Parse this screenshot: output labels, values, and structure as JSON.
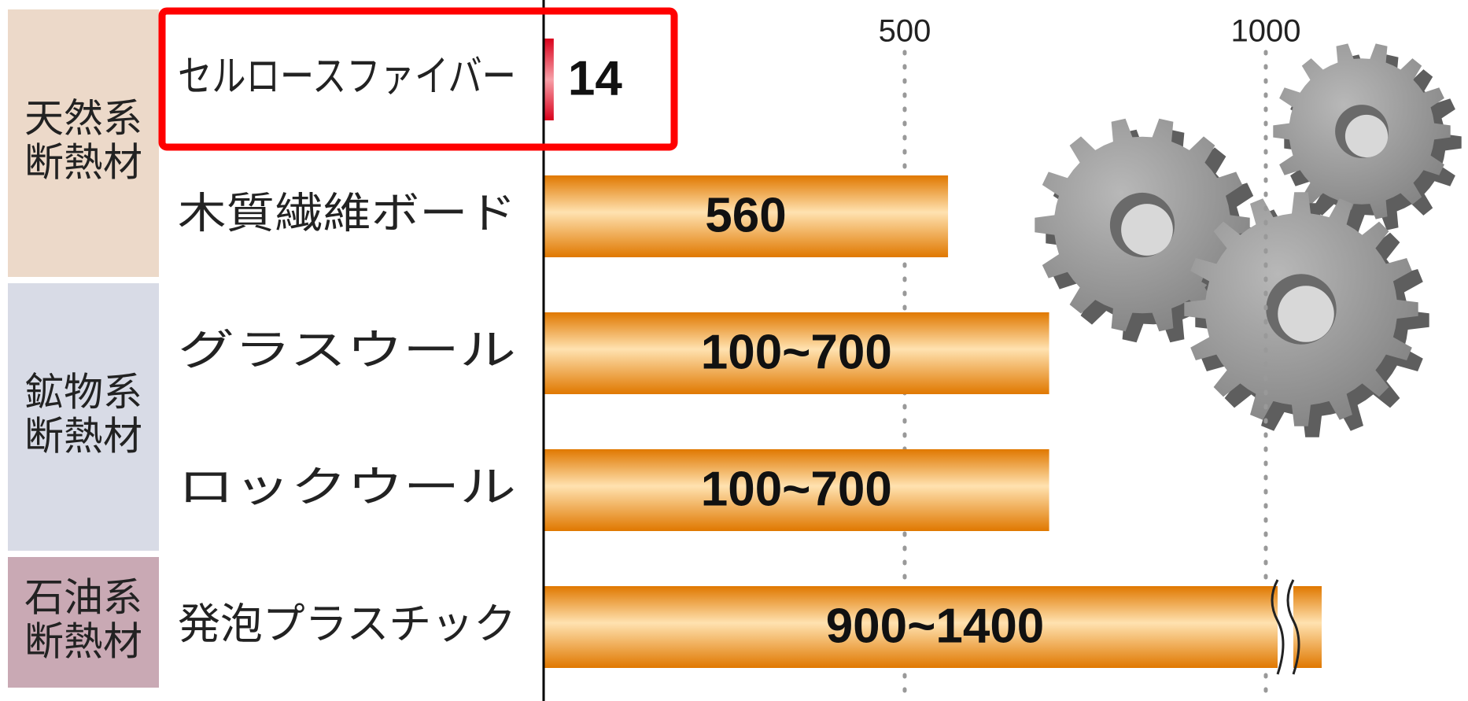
{
  "chart_data": {
    "type": "bar",
    "orientation": "horizontal",
    "groups": [
      {
        "name": [
          "天然系",
          "断熱材"
        ],
        "background": "#ecd9c9",
        "categories": [
          "セルロースファイバー",
          "木質繊維ボード"
        ],
        "values": [
          14,
          560
        ],
        "value_labels": [
          "14",
          "560"
        ],
        "colors": [
          "#d9001b",
          "#f08a00"
        ]
      },
      {
        "name": [
          "鉱物系",
          "断熱材"
        ],
        "background": "#d8dbe6",
        "categories": [
          "グラスウール",
          "ロックウール"
        ],
        "values": [
          700,
          700
        ],
        "value_labels": [
          "100~700",
          "100~700"
        ],
        "colors": [
          "#f08a00",
          "#f08a00"
        ]
      },
      {
        "name": [
          "石油系",
          "断熱材"
        ],
        "background": "#c9a9b4",
        "categories": [
          "発泡プラスチック"
        ],
        "values": [
          1400
        ],
        "value_labels": [
          "900~1400"
        ],
        "colors": [
          "#f08a00"
        ]
      }
    ],
    "xlim": [
      0,
      1280
    ],
    "xticks": [
      500,
      1000
    ],
    "grid": true,
    "axis_break": true
  }
}
